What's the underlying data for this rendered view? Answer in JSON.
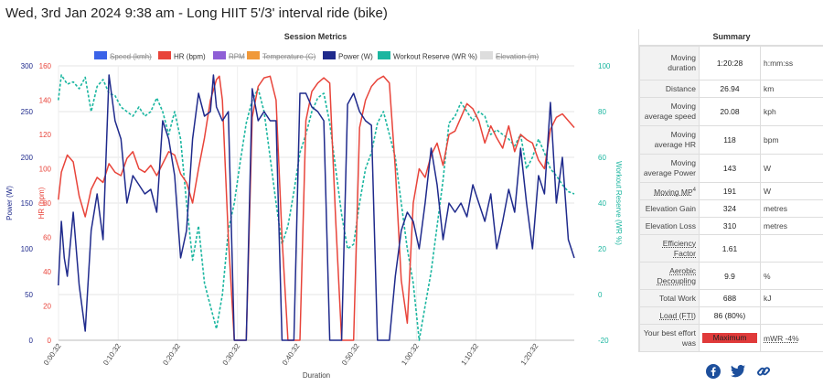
{
  "page": {
    "title": "Wed, 3rd Jan 2024 9:38 am - Long HIIT 5'/3' interval ride (bike)"
  },
  "chart": {
    "title": "Session Metrics",
    "xlabel": "Duration",
    "legend": [
      {
        "name": "Speed (kmh)",
        "color": "#3b63e8",
        "hidden": true
      },
      {
        "name": "HR (bpm)",
        "color": "#e8443a",
        "hidden": false
      },
      {
        "name": "RPM",
        "color": "#8f5fd6",
        "hidden": true
      },
      {
        "name": "Temperature (C)",
        "color": "#f0993a",
        "hidden": true
      },
      {
        "name": "Power (W)",
        "color": "#1f2a8c",
        "hidden": false
      },
      {
        "name": "Workout Reserve (WR %)",
        "color": "#1bb6a0",
        "hidden": false
      },
      {
        "name": "Elevation (m)",
        "color": "#dddddd",
        "hidden": true
      }
    ],
    "axes": {
      "power": {
        "label": "Power (W)",
        "color": "#1f2a8c",
        "ticks": [
          "300",
          "250",
          "200",
          "150",
          "100",
          "50",
          "0"
        ],
        "range": [
          0,
          300
        ]
      },
      "hr": {
        "label": "HR (bpm)",
        "color": "#e8443a",
        "ticks": [
          "160",
          "140",
          "120",
          "100",
          "80",
          "60",
          "40",
          "20",
          "0"
        ],
        "range": [
          0,
          160
        ]
      },
      "wr": {
        "label": "Workout Reserve (WR %)",
        "color": "#1bb6a0",
        "ticks": [
          "100",
          "80",
          "60",
          "40",
          "20",
          "0",
          "-20"
        ],
        "range": [
          -20,
          100
        ]
      }
    },
    "xticks": [
      "0:00:32",
      "0:10:32",
      "0:20:32",
      "0:30:32",
      "0:40:32",
      "0:50:32",
      "1:00:32",
      "1:10:32",
      "1:20:32"
    ]
  },
  "chart_data": {
    "type": "line",
    "title": "Session Metrics",
    "xlabel": "Duration",
    "x_unit": "minutes",
    "xlim": [
      0.53,
      87
    ],
    "series": [
      {
        "name": "HR (bpm)",
        "axis": "hr",
        "x": [
          0.5,
          1,
          2,
          3,
          4,
          5,
          6,
          7,
          8,
          9,
          10,
          11,
          12,
          13,
          14,
          15,
          16,
          17,
          18,
          19,
          20,
          21,
          22,
          23,
          24,
          25,
          26,
          27,
          27.5,
          28,
          29,
          30,
          31,
          32,
          33,
          34,
          35,
          36,
          37,
          38,
          39,
          40,
          41,
          42,
          43,
          44,
          45,
          46,
          47,
          48,
          49,
          50,
          51,
          52,
          53,
          54,
          55,
          56,
          57,
          58,
          59,
          60,
          61,
          62,
          63,
          64,
          65,
          66,
          67,
          68,
          69,
          70,
          71,
          72,
          73,
          74,
          75,
          76,
          77,
          78,
          79,
          80,
          81,
          82,
          83,
          84,
          85,
          86,
          87
        ],
        "y": [
          82,
          98,
          108,
          104,
          84,
          72,
          88,
          95,
          92,
          103,
          98,
          96,
          106,
          110,
          100,
          98,
          102,
          96,
          103,
          110,
          108,
          97,
          92,
          80,
          100,
          118,
          140,
          152,
          154,
          140,
          60,
          0,
          0,
          0,
          130,
          148,
          153,
          154,
          140,
          60,
          0,
          0,
          0,
          128,
          145,
          150,
          153,
          150,
          70,
          0,
          0,
          0,
          124,
          140,
          148,
          152,
          154,
          150,
          100,
          35,
          10,
          80,
          100,
          95,
          108,
          115,
          102,
          120,
          122,
          130,
          138,
          135,
          128,
          115,
          125,
          118,
          112,
          125,
          110,
          120,
          117,
          115,
          105,
          100,
          123,
          130,
          132,
          128,
          124
        ]
      },
      {
        "name": "Power (W)",
        "axis": "power",
        "x": [
          0.5,
          1,
          1.5,
          2,
          3,
          4,
          5,
          6,
          7,
          8,
          9,
          10,
          11,
          12,
          13,
          14,
          15,
          16,
          17,
          18,
          19,
          20,
          21,
          22,
          23,
          24,
          25,
          26,
          26.5,
          27,
          28,
          29,
          30,
          31,
          32,
          33,
          34,
          35,
          36,
          37,
          38,
          39,
          40,
          41,
          42,
          43,
          44,
          45,
          46,
          47,
          48,
          49,
          50,
          51,
          52,
          53,
          54,
          55,
          56,
          57,
          58,
          59,
          60,
          61,
          62,
          63,
          64,
          65,
          66,
          67,
          68,
          69,
          70,
          71,
          72,
          73,
          74,
          75,
          76,
          77,
          78,
          79,
          80,
          81,
          82,
          83,
          84,
          85,
          86,
          87
        ],
        "y": [
          60,
          130,
          90,
          70,
          140,
          60,
          10,
          120,
          160,
          110,
          290,
          240,
          220,
          150,
          180,
          170,
          160,
          165,
          140,
          240,
          220,
          180,
          90,
          120,
          220,
          270,
          245,
          250,
          290,
          255,
          240,
          250,
          0,
          0,
          0,
          275,
          240,
          250,
          240,
          240,
          0,
          0,
          0,
          270,
          270,
          255,
          250,
          240,
          0,
          0,
          0,
          258,
          270,
          250,
          240,
          235,
          0,
          0,
          0,
          70,
          120,
          140,
          130,
          100,
          150,
          210,
          170,
          110,
          150,
          140,
          150,
          135,
          170,
          150,
          130,
          160,
          100,
          130,
          165,
          140,
          210,
          150,
          100,
          180,
          160,
          260,
          150,
          200,
          110,
          90
        ]
      },
      {
        "name": "Workout Reserve (WR %)",
        "axis": "wr",
        "x": [
          0.5,
          1,
          2,
          3,
          4,
          5,
          6,
          7,
          8,
          9,
          10,
          11,
          12,
          13,
          14,
          15,
          16,
          17,
          18,
          19,
          20,
          21,
          22,
          23,
          24,
          25,
          26,
          27,
          28,
          29,
          30,
          31,
          32,
          33,
          34,
          35,
          36,
          37,
          38,
          39,
          40,
          41,
          42,
          43,
          44,
          45,
          46,
          47,
          48,
          49,
          50,
          51,
          52,
          53,
          54,
          55,
          56,
          57,
          58,
          59,
          60,
          61,
          62,
          63,
          64,
          65,
          66,
          67,
          68,
          69,
          70,
          71,
          72,
          73,
          74,
          75,
          76,
          77,
          78,
          79,
          80,
          81,
          82,
          83,
          84,
          85,
          86,
          87
        ],
        "y": [
          85,
          96,
          92,
          93,
          90,
          95,
          80,
          91,
          94,
          88,
          87,
          82,
          80,
          78,
          82,
          78,
          80,
          86,
          80,
          70,
          80,
          68,
          40,
          15,
          30,
          5,
          -5,
          -15,
          0,
          28,
          40,
          58,
          75,
          85,
          90,
          80,
          60,
          40,
          22,
          30,
          45,
          62,
          70,
          80,
          86,
          88,
          75,
          55,
          35,
          20,
          22,
          40,
          55,
          62,
          75,
          80,
          70,
          60,
          40,
          20,
          5,
          -20,
          -5,
          10,
          30,
          50,
          75,
          78,
          84,
          80,
          76,
          80,
          78,
          70,
          72,
          70,
          68,
          65,
          70,
          55,
          60,
          68,
          62,
          55,
          52,
          48,
          45,
          44
        ]
      }
    ]
  },
  "summary": {
    "title": "Summary",
    "rows": [
      {
        "label": "Moving duration",
        "value": "1:20:28",
        "unit": "h:mm:ss"
      },
      {
        "label": "Distance",
        "value": "26.94",
        "unit": "km"
      },
      {
        "label": "Moving average speed",
        "value": "20.08",
        "unit": "kph"
      },
      {
        "label": "Moving average HR",
        "value": "118",
        "unit": "bpm"
      },
      {
        "label": "Moving average Power",
        "value": "143",
        "unit": "W"
      },
      {
        "label": "Moving MP",
        "label_sup": "4",
        "value": "191",
        "unit": "W"
      },
      {
        "label": "Elevation Gain",
        "value": "324",
        "unit": "metres"
      },
      {
        "label": "Elevation Loss",
        "value": "310",
        "unit": "metres"
      },
      {
        "label": "Efficiency Factor",
        "value": "1.61",
        "unit": ""
      },
      {
        "label": "Aerobic Decoupling",
        "value": "9.9",
        "unit": "%"
      },
      {
        "label": "Total Work",
        "value": "688",
        "unit": "kJ"
      },
      {
        "label": "Load (FTI)",
        "value": "86 (80%)",
        "unit": ""
      },
      {
        "label": "Your best effort was",
        "value": "Maximum",
        "unit": "mWR -4%"
      }
    ]
  },
  "social": [
    {
      "name": "facebook-icon",
      "color": "#1d4f9c"
    },
    {
      "name": "twitter-icon",
      "color": "#1d4f9c"
    },
    {
      "name": "link-icon",
      "color": "#1d4f9c"
    }
  ]
}
